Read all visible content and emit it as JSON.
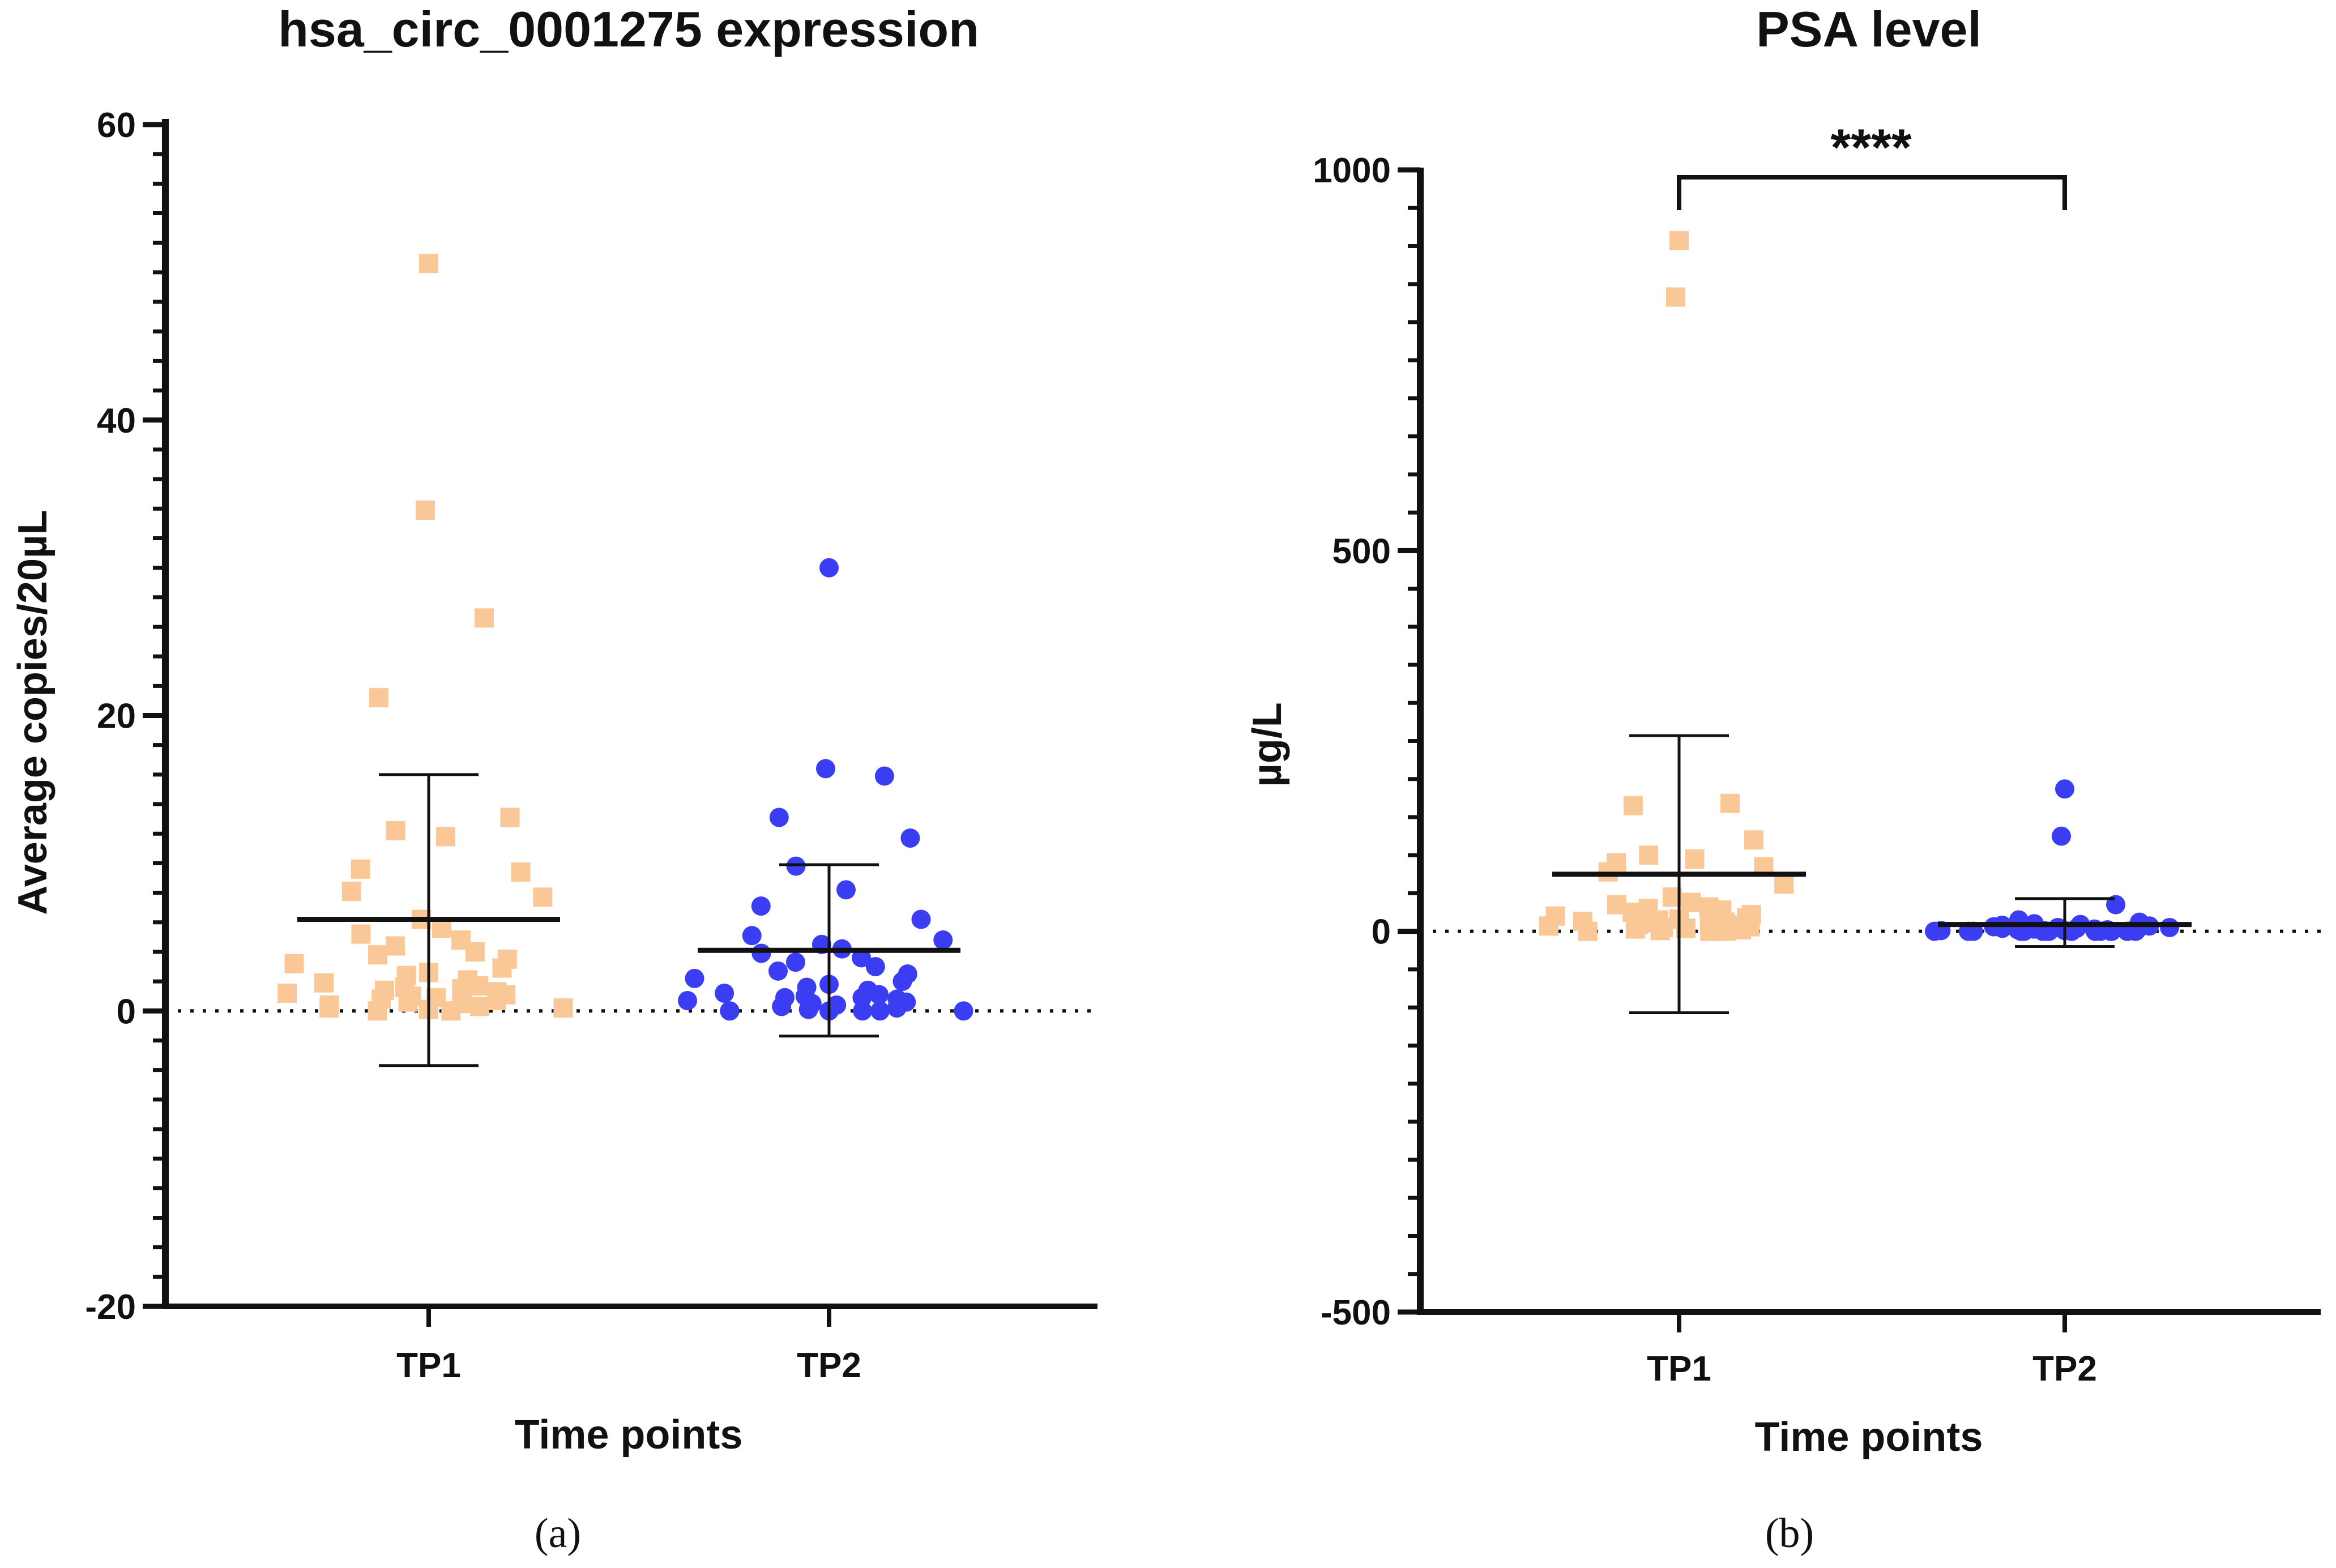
{
  "chart_data": [
    {
      "type": "scatter",
      "panel_label": "(a)",
      "title": "hsa_circ_0001275 expression",
      "xlabel": "Time points",
      "ylabel": "Average copies/20µL",
      "categories": [
        "TP1",
        "TP2"
      ],
      "ylim": [
        -20,
        60
      ],
      "yticks": [
        -20,
        0,
        20,
        40,
        60
      ],
      "y_minor_step": 2,
      "reference_line": 0,
      "significance": "",
      "series": [
        {
          "name": "TP1",
          "marker": "square",
          "color": "#f9c896",
          "mean": 6.2,
          "sd_lower": -3.7,
          "sd_upper": 16.0,
          "values": [
            50.6,
            33.9,
            26.6,
            21.2,
            13.1,
            12.2,
            11.8,
            9.6,
            9.4,
            8.1,
            7.7,
            6.2,
            5.6,
            5.2,
            4.8,
            4.4,
            4.0,
            3.8,
            3.5,
            3.2,
            2.9,
            2.6,
            2.4,
            2.1,
            1.9,
            1.7,
            1.6,
            1.5,
            1.4,
            1.3,
            1.2,
            1.1,
            1.0,
            0.9,
            0.8,
            0.7,
            0.6,
            0.5,
            0.4,
            0.3,
            0.2,
            0.2,
            0.1,
            0.0,
            0.0
          ]
        },
        {
          "name": "TP2",
          "marker": "circle",
          "color": "#3b3df2",
          "mean": 4.1,
          "sd_lower": -1.7,
          "sd_upper": 9.9,
          "values": [
            30.0,
            16.4,
            15.9,
            13.1,
            11.7,
            9.8,
            8.2,
            7.1,
            6.2,
            5.1,
            4.8,
            4.5,
            4.2,
            3.9,
            3.6,
            3.3,
            3.0,
            2.7,
            2.5,
            2.2,
            2.0,
            1.8,
            1.6,
            1.4,
            1.2,
            1.1,
            1.0,
            0.9,
            0.9,
            0.8,
            0.7,
            0.6,
            0.5,
            0.4,
            0.3,
            0.2,
            0.1,
            0.0,
            0.0,
            0.0,
            0.0,
            0.0,
            0.0
          ]
        }
      ]
    },
    {
      "type": "scatter",
      "panel_label": "(b)",
      "title": "PSA level",
      "xlabel": "Time points",
      "ylabel": "µg/L",
      "categories": [
        "TP1",
        "TP2"
      ],
      "ylim": [
        -500,
        1000
      ],
      "yticks": [
        -500,
        0,
        500,
        1000
      ],
      "y_minor_step": 50,
      "reference_line": 0,
      "significance": "****",
      "series": [
        {
          "name": "TP1",
          "marker": "square",
          "color": "#f9c896",
          "mean": 75,
          "sd_lower": -107,
          "sd_upper": 257,
          "values": [
            907,
            833,
            168,
            165,
            120,
            100,
            95,
            90,
            85,
            78,
            62,
            45,
            38,
            35,
            32,
            30,
            28,
            25,
            22,
            20,
            18,
            16,
            15,
            14,
            13,
            12,
            11,
            10,
            9,
            8,
            7,
            6,
            5,
            4,
            3,
            2,
            1,
            0,
            0,
            0
          ]
        },
        {
          "name": "TP2",
          "marker": "circle",
          "color": "#3b3df2",
          "mean": 9,
          "sd_lower": -20,
          "sd_upper": 43,
          "values": [
            187,
            125,
            35,
            15,
            12,
            10,
            9,
            8,
            7,
            6,
            5,
            5,
            4,
            4,
            3,
            3,
            2,
            2,
            2,
            1,
            1,
            1,
            1,
            0,
            0,
            0,
            0,
            0,
            0,
            0,
            0,
            0,
            0,
            0,
            0,
            0,
            0,
            0,
            0,
            0
          ]
        }
      ]
    }
  ]
}
